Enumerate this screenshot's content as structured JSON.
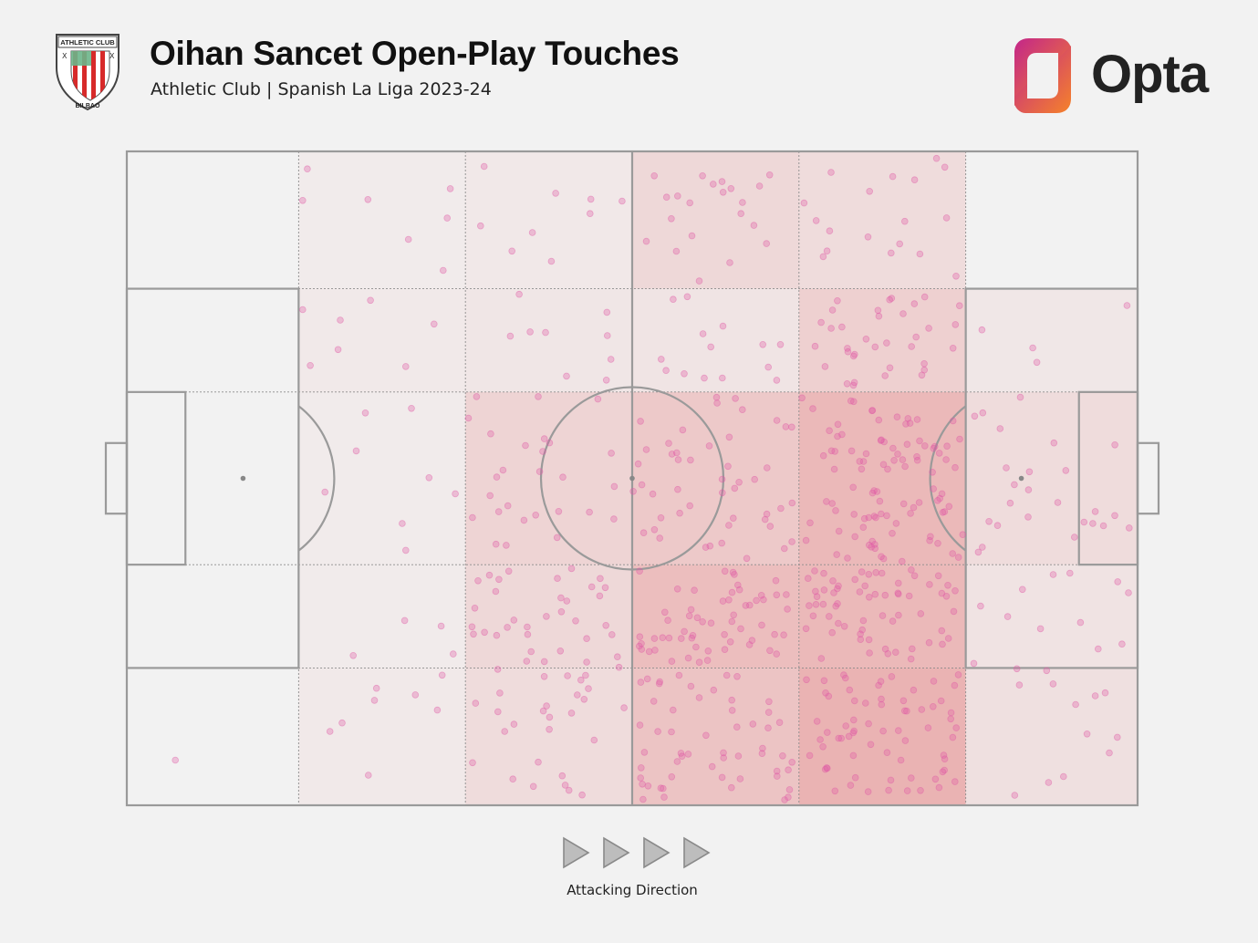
{
  "header": {
    "title": "Oihan Sancet Open-Play Touches",
    "subtitle": "Athletic Club | Spanish La Liga 2023-24",
    "crest_text": "ATHLETIC CLUB",
    "crest_bottom_text": "BILBAO",
    "brand": "Opta"
  },
  "footer": {
    "direction_label": "Attacking Direction"
  },
  "colors": {
    "background": "#f2f2f2",
    "pitch_lines": "#9a9a9a",
    "dot_fill": "#e05aa6",
    "zone_base": "#e68f8f",
    "opta_orange": "#f5822a",
    "opta_magenta": "#c3268a"
  },
  "chart_data": {
    "type": "heatmap",
    "attacking_direction": "left-to-right",
    "x_edges": [
      0,
      17,
      33.5,
      50,
      66.5,
      83,
      100
    ],
    "y_edges": [
      0,
      21,
      36.8,
      63.2,
      79,
      100
    ],
    "zone_intensity": [
      [
        0.0,
        0.1,
        0.13,
        0.35,
        0.28,
        0.0
      ],
      [
        0.0,
        0.12,
        0.15,
        0.18,
        0.45,
        0.14
      ],
      [
        0.0,
        0.1,
        0.4,
        0.55,
        0.78,
        0.28
      ],
      [
        0.0,
        0.1,
        0.35,
        0.7,
        0.78,
        0.2
      ],
      [
        0.0,
        0.12,
        0.3,
        0.62,
        0.85,
        0.24
      ]
    ],
    "touches": [
      [
        4.8,
        93.1
      ],
      [
        17.4,
        7.5
      ],
      [
        17.4,
        24.2
      ],
      [
        19.6,
        52.1
      ],
      [
        20.1,
        88.7
      ],
      [
        20.9,
        30.3
      ],
      [
        21.3,
        87.4
      ],
      [
        22.7,
        45.8
      ],
      [
        23.6,
        40.0
      ],
      [
        23.9,
        95.4
      ],
      [
        22.4,
        77.1
      ],
      [
        24.7,
        82.1
      ],
      [
        27.6,
        32.9
      ],
      [
        27.6,
        61.0
      ],
      [
        29.9,
        49.9
      ],
      [
        30.4,
        26.4
      ],
      [
        31.2,
        80.1
      ],
      [
        31.1,
        72.6
      ],
      [
        31.3,
        18.2
      ],
      [
        31.7,
        10.2
      ],
      [
        32.0,
        5.7
      ],
      [
        33.8,
        40.8
      ],
      [
        34.2,
        56.0
      ],
      [
        34.5,
        84.4
      ],
      [
        34.6,
        37.5
      ],
      [
        35.0,
        11.4
      ],
      [
        36.0,
        43.2
      ],
      [
        36.5,
        67.3
      ],
      [
        36.7,
        79.2
      ],
      [
        36.6,
        49.8
      ],
      [
        36.8,
        55.1
      ],
      [
        37.7,
        54.2
      ],
      [
        38.3,
        87.6
      ],
      [
        39.9,
        27.6
      ],
      [
        39.3,
        56.4
      ],
      [
        40.0,
        76.5
      ],
      [
        40.7,
        37.5
      ],
      [
        40.7,
        93.4
      ],
      [
        41.3,
        80.3
      ],
      [
        41.8,
        88.4
      ],
      [
        42.0,
        16.8
      ],
      [
        42.9,
        76.4
      ],
      [
        42.6,
        65.3
      ],
      [
        43.0,
        70.4
      ],
      [
        43.6,
        80.2
      ],
      [
        44.0,
        63.8
      ],
      [
        44.4,
        71.8
      ],
      [
        44.0,
        85.9
      ],
      [
        45.5,
        74.5
      ],
      [
        45.5,
        78.1
      ],
      [
        46.0,
        66.6
      ],
      [
        47.4,
        72.5
      ],
      [
        47.5,
        24.6
      ],
      [
        47.9,
        31.8
      ],
      [
        48.0,
        73.9
      ],
      [
        48.7,
        78.9
      ],
      [
        49.0,
        7.6
      ],
      [
        50.1,
        52.0
      ],
      [
        50.6,
        47.8
      ],
      [
        51.4,
        45.6
      ],
      [
        53.4,
        7.0
      ],
      [
        54.4,
        46.1
      ],
      [
        54.5,
        51.7
      ],
      [
        55.0,
        42.6
      ],
      [
        55.7,
        54.2
      ],
      [
        57.0,
        27.9
      ],
      [
        58.4,
        38.5
      ],
      [
        59.6,
        43.7
      ],
      [
        60.0,
        56.1
      ],
      [
        60.1,
        64.7
      ],
      [
        60.9,
        39.5
      ],
      [
        62.6,
        5.3
      ],
      [
        63.6,
        3.6
      ],
      [
        64.3,
        35.0
      ],
      [
        64.7,
        54.6
      ],
      [
        65.2,
        42.1
      ],
      [
        65.8,
        59.7
      ],
      [
        66.8,
        37.7
      ],
      [
        67.0,
        7.9
      ],
      [
        67.2,
        59.5
      ],
      [
        67.6,
        56.8
      ],
      [
        68.1,
        29.8
      ],
      [
        68.9,
        16.1
      ],
      [
        69.5,
        42.7
      ],
      [
        70.0,
        48.6
      ],
      [
        71.3,
        62.2
      ],
      [
        71.9,
        31.3
      ],
      [
        72.5,
        47.4
      ],
      [
        73.4,
        56.0
      ],
      [
        74.0,
        60.1
      ],
      [
        74.4,
        25.2
      ],
      [
        74.7,
        64.5
      ],
      [
        75.8,
        45.4
      ],
      [
        76.7,
        62.7
      ],
      [
        77.2,
        44.8
      ],
      [
        78.2,
        41.0
      ],
      [
        79.5,
        58.9
      ],
      [
        79.8,
        51.6
      ],
      [
        80.3,
        64.9
      ],
      [
        80.9,
        55.1
      ],
      [
        81.7,
        61.5
      ],
      [
        82.7,
        58.6
      ],
      [
        83.8,
        78.3
      ],
      [
        84.6,
        27.3
      ],
      [
        85.3,
        56.6
      ],
      [
        86.4,
        42.4
      ],
      [
        87.0,
        48.4
      ],
      [
        87.4,
        53.8
      ],
      [
        88.4,
        37.6
      ],
      [
        89.3,
        49.0
      ],
      [
        90.4,
        73.0
      ],
      [
        91.0,
        79.4
      ],
      [
        92.1,
        53.7
      ],
      [
        92.9,
        48.8
      ],
      [
        93.3,
        64.5
      ],
      [
        94.7,
        56.7
      ],
      [
        95.0,
        89.1
      ],
      [
        96.1,
        76.1
      ],
      [
        96.8,
        82.8
      ],
      [
        97.2,
        92.0
      ],
      [
        98.0,
        89.6
      ],
      [
        99.1,
        67.5
      ]
    ],
    "dense_zones": [
      {
        "x_range": [
          50,
          66.5
        ],
        "y_range": [
          63.2,
          79
        ],
        "count": 58
      },
      {
        "x_range": [
          50,
          66.5
        ],
        "y_range": [
          79,
          100
        ],
        "count": 55
      },
      {
        "x_range": [
          66.5,
          83
        ],
        "y_range": [
          36.8,
          63.2
        ],
        "count": 80
      },
      {
        "x_range": [
          66.5,
          83
        ],
        "y_range": [
          63.2,
          79
        ],
        "count": 62
      },
      {
        "x_range": [
          66.5,
          83
        ],
        "y_range": [
          79,
          100
        ],
        "count": 68
      },
      {
        "x_range": [
          66.5,
          83
        ],
        "y_range": [
          21,
          36.8
        ],
        "count": 32
      },
      {
        "x_range": [
          50,
          66.5
        ],
        "y_range": [
          36.8,
          63.2
        ],
        "count": 34
      },
      {
        "x_range": [
          33.5,
          50
        ],
        "y_range": [
          63.2,
          79
        ],
        "count": 22
      },
      {
        "x_range": [
          33.5,
          50
        ],
        "y_range": [
          79,
          100
        ],
        "count": 20
      }
    ]
  }
}
